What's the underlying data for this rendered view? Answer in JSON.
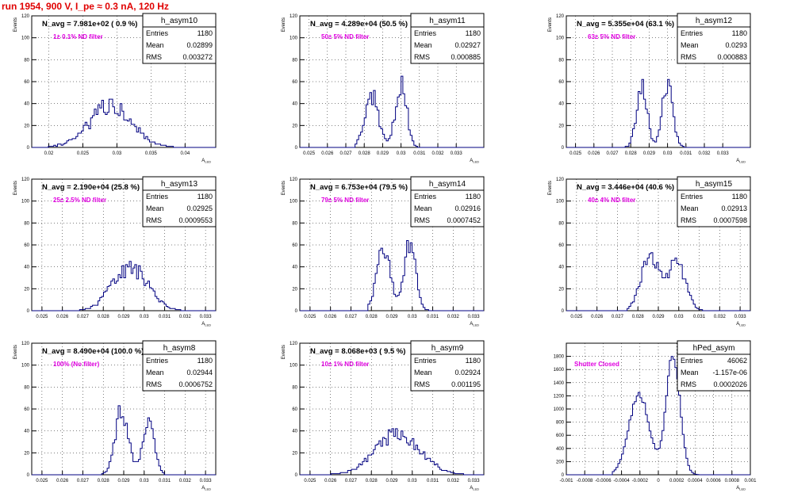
{
  "page": {
    "title": "run 1954,   900 V, I_pe ≈ 0.3 nA, 120 Hz"
  },
  "colors": {
    "title": "#e00000",
    "histogram": "#000080",
    "annotation": "#e000e0",
    "grid": "#000000"
  },
  "stats_labels": {
    "entries": "Entries",
    "mean": "Mean",
    "rms": "RMS"
  },
  "chart_data": [
    {
      "type": "histogram",
      "name": "h_asym10",
      "ylabel": "Events",
      "xlabel": "A_LED",
      "n_avg": "N_avg = 7.981e+02 ( 0.9 %)",
      "annotation": "1± 0.1% ND filter",
      "stats": {
        "entries": "1180",
        "mean": "0.02899",
        "rms": "0.003272"
      },
      "xlim": [
        0.0175,
        0.0445
      ],
      "ylim": [
        0,
        120
      ],
      "xticks": [
        "0.02",
        "0.025",
        "0.03",
        "0.035",
        "0.04"
      ],
      "yticks": [
        "0",
        "20",
        "40",
        "60",
        "80",
        "100",
        "120"
      ],
      "dist": {
        "peaks": [
          [
            0.029,
            0.0032,
            35
          ]
        ],
        "range": [
          0.0185,
          0.0395
        ],
        "seed": 11,
        "noise": 0.3
      }
    },
    {
      "type": "histogram",
      "name": "h_asym11",
      "ylabel": "Events",
      "xlabel": "A_LED",
      "n_avg": "N_avg = 4.289e+04 (50.5 %)",
      "annotation": "50± 5% ND filter",
      "stats": {
        "entries": "1180",
        "mean": "0.02927",
        "rms": "0.000885"
      },
      "xlim": [
        0.0245,
        0.0345
      ],
      "ylim": [
        0,
        120
      ],
      "xticks": [
        "0.025",
        "0.026",
        "0.027",
        "0.028",
        "0.029",
        "0.03",
        "0.031",
        "0.032",
        "0.033"
      ],
      "yticks": [
        "0",
        "20",
        "40",
        "60",
        "80",
        "100",
        "120"
      ],
      "dist": {
        "peaks": [
          [
            0.0284,
            0.00038,
            48
          ],
          [
            0.03,
            0.0003,
            58
          ]
        ],
        "range": [
          0.0275,
          0.031
        ],
        "seed": 12,
        "noise": 0.22
      }
    },
    {
      "type": "histogram",
      "name": "h_asym12",
      "ylabel": "Events",
      "xlabel": "A_LED",
      "n_avg": "N_avg = 5.355e+04 (63.1 %)",
      "annotation": "63± 5% ND filter",
      "stats": {
        "entries": "1180",
        "mean": "0.0293",
        "rms": "0.000883"
      },
      "xlim": [
        0.0245,
        0.0345
      ],
      "ylim": [
        0,
        120
      ],
      "xticks": [
        "0.025",
        "0.026",
        "0.027",
        "0.028",
        "0.029",
        "0.03",
        "0.031",
        "0.032",
        "0.033"
      ],
      "yticks": [
        "0",
        "20",
        "40",
        "60",
        "80",
        "100",
        "120"
      ],
      "dist": {
        "peaks": [
          [
            0.0286,
            0.00028,
            58
          ],
          [
            0.03,
            0.00028,
            60
          ]
        ],
        "range": [
          0.0276,
          0.031
        ],
        "seed": 13,
        "noise": 0.18
      }
    },
    {
      "type": "histogram",
      "name": "h_asym13",
      "ylabel": "Events",
      "xlabel": "A_LED",
      "n_avg": "N_avg = 2.190e+04 (25.8 %)",
      "annotation": "25± 2.5% ND filter",
      "stats": {
        "entries": "1180",
        "mean": "0.02925",
        "rms": "0.0009553"
      },
      "xlim": [
        0.0245,
        0.0335
      ],
      "ylim": [
        0,
        120
      ],
      "xticks": [
        "0.025",
        "0.026",
        "0.027",
        "0.028",
        "0.029",
        "0.03",
        "0.031",
        "0.032",
        "0.033"
      ],
      "yticks": [
        "0",
        "20",
        "40",
        "60",
        "80",
        "100",
        "120"
      ],
      "dist": {
        "peaks": [
          [
            0.0293,
            0.00085,
            40
          ]
        ],
        "range": [
          0.0268,
          0.0318
        ],
        "seed": 14,
        "noise": 0.22
      }
    },
    {
      "type": "histogram",
      "name": "h_asym14",
      "ylabel": "Events",
      "xlabel": "A_LED",
      "n_avg": "N_avg = 6.753e+04 (79.5 %)",
      "annotation": "79± 5% ND filter",
      "stats": {
        "entries": "1180",
        "mean": "0.02916",
        "rms": "0.0007452"
      },
      "xlim": [
        0.0245,
        0.0335
      ],
      "ylim": [
        0,
        120
      ],
      "xticks": [
        "0.025",
        "0.026",
        "0.027",
        "0.028",
        "0.029",
        "0.03",
        "0.031",
        "0.032",
        "0.033"
      ],
      "yticks": [
        "0",
        "20",
        "40",
        "60",
        "80",
        "100",
        "120"
      ],
      "dist": {
        "peaks": [
          [
            0.0286,
            0.00033,
            58
          ],
          [
            0.0299,
            0.00028,
            62
          ]
        ],
        "range": [
          0.0278,
          0.0308
        ],
        "seed": 15,
        "noise": 0.16
      }
    },
    {
      "type": "histogram",
      "name": "h_asym15",
      "ylabel": "Events",
      "xlabel": "A_LED",
      "n_avg": "N_avg = 3.446e+04 (40.6 %)",
      "annotation": "40± 4% ND filter",
      "stats": {
        "entries": "1180",
        "mean": "0.02913",
        "rms": "0.0007598"
      },
      "xlim": [
        0.0245,
        0.0335
      ],
      "ylim": [
        0,
        120
      ],
      "xticks": [
        "0.025",
        "0.026",
        "0.027",
        "0.028",
        "0.029",
        "0.03",
        "0.031",
        "0.032",
        "0.033"
      ],
      "yticks": [
        "0",
        "20",
        "40",
        "60",
        "80",
        "100",
        "120"
      ],
      "dist": {
        "peaks": [
          [
            0.0286,
            0.00045,
            48
          ],
          [
            0.0299,
            0.00042,
            46
          ]
        ],
        "range": [
          0.0275,
          0.0312
        ],
        "seed": 16,
        "noise": 0.16
      }
    },
    {
      "type": "histogram",
      "name": "h_asym8",
      "ylabel": "Events",
      "xlabel": "A_LED",
      "n_avg": "N_avg = 8.490e+04 (100.0 %)",
      "annotation": "100% (No filter)",
      "stats": {
        "entries": "1180",
        "mean": "0.02944",
        "rms": "0.0006752"
      },
      "xlim": [
        0.0245,
        0.0335
      ],
      "ylim": [
        0,
        120
      ],
      "xticks": [
        "0.025",
        "0.026",
        "0.027",
        "0.028",
        "0.029",
        "0.03",
        "0.031",
        "0.032",
        "0.033"
      ],
      "yticks": [
        "0",
        "20",
        "40",
        "60",
        "80",
        "100",
        "120"
      ],
      "dist": {
        "peaks": [
          [
            0.0289,
            0.00032,
            58
          ],
          [
            0.0302,
            0.00028,
            52
          ]
        ],
        "range": [
          0.0279,
          0.031
        ],
        "seed": 17,
        "noise": 0.18
      }
    },
    {
      "type": "histogram",
      "name": "h_asym9",
      "ylabel": "Events",
      "xlabel": "A_LED",
      "n_avg": "N_avg = 8.068e+03 ( 9.5 %)",
      "annotation": "10± 1% ND filter",
      "stats": {
        "entries": "1180",
        "mean": "0.02924",
        "rms": "0.001195"
      },
      "xlim": [
        0.0245,
        0.0335
      ],
      "ylim": [
        0,
        120
      ],
      "xticks": [
        "0.025",
        "0.026",
        "0.027",
        "0.028",
        "0.029",
        "0.03",
        "0.031",
        "0.032",
        "0.033"
      ],
      "yticks": [
        "0",
        "20",
        "40",
        "60",
        "80",
        "100",
        "120"
      ],
      "dist": {
        "peaks": [
          [
            0.0293,
            0.0011,
            37
          ]
        ],
        "range": [
          0.0258,
          0.0328
        ],
        "seed": 18,
        "noise": 0.2
      }
    },
    {
      "type": "histogram",
      "name": "hPed_asym",
      "ylabel": "",
      "xlabel": "A_LED",
      "n_avg": "",
      "annotation": "Shutter Closed",
      "stats": {
        "entries": "46062",
        "mean": "-1.157e-06",
        "rms": "0.0002026"
      },
      "xlim": [
        -0.001,
        0.001
      ],
      "ylim": [
        0,
        2000
      ],
      "xticks": [
        "-0.001",
        "-0.0008",
        "-0.0006",
        "-0.0004",
        "-0.0002",
        "0",
        "0.0002",
        "0.0004",
        "0.0006",
        "0.0008",
        "0.001"
      ],
      "yticks": [
        "0",
        "200",
        "400",
        "600",
        "800",
        "1000",
        "1200",
        "1400",
        "1600",
        "1800"
      ],
      "dist": {
        "peaks": [
          [
            -0.00021,
            0.00011,
            1220
          ],
          [
            0.00016,
            7.5e-05,
            1800
          ]
        ],
        "range": [
          -0.0005,
          0.00045
        ],
        "seed": 19,
        "noise": 0.04
      }
    }
  ]
}
